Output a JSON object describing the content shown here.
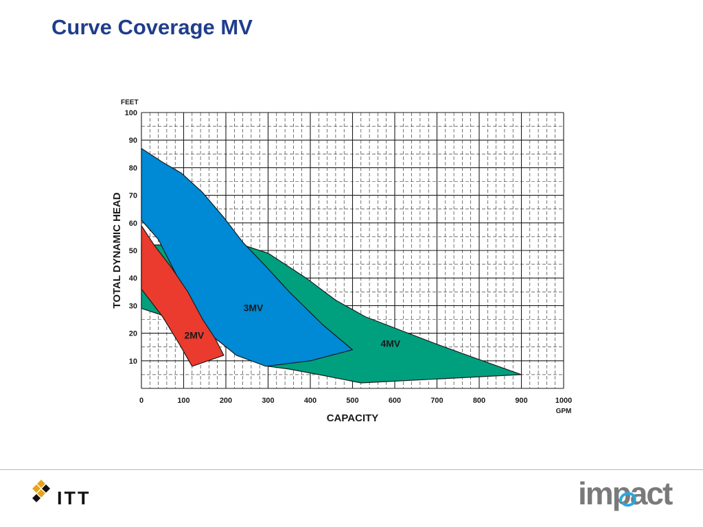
{
  "slide": {
    "title": "Curve Coverage MV"
  },
  "colors": {
    "title": "#1f3d8c",
    "grid": "#1a1a1a",
    "2MV": "#ea3b2e",
    "3MV": "#0089d4",
    "4MV": "#00a07f"
  },
  "chart_data": {
    "type": "area",
    "title": "",
    "xlabel": "CAPACITY",
    "ylabel": "TOTAL DYNAMIC HEAD",
    "x_unit": "GPM",
    "y_unit": "FEET",
    "xlim": [
      0,
      1000
    ],
    "ylim": [
      0,
      100
    ],
    "x_ticks": [
      0,
      100,
      200,
      300,
      400,
      500,
      600,
      700,
      800,
      900,
      1000
    ],
    "y_ticks": [
      10,
      20,
      30,
      40,
      50,
      60,
      70,
      80,
      90,
      100
    ],
    "grid": true,
    "series": [
      {
        "name": "4MV",
        "color": "#00a07f",
        "points": [
          [
            0,
            35
          ],
          [
            0,
            29
          ],
          [
            40,
            27
          ],
          [
            200,
            17
          ],
          [
            300,
            8
          ],
          [
            350,
            7
          ],
          [
            420,
            5
          ],
          [
            520,
            2
          ],
          [
            900,
            5
          ],
          [
            790,
            11
          ],
          [
            700,
            16
          ],
          [
            530,
            26
          ],
          [
            460,
            32
          ],
          [
            390,
            40
          ],
          [
            300,
            49
          ],
          [
            240,
            52
          ],
          [
            0,
            52
          ]
        ]
      },
      {
        "name": "3MV",
        "color": "#0089d4",
        "points": [
          [
            0,
            87
          ],
          [
            50,
            82
          ],
          [
            95,
            78
          ],
          [
            145,
            71
          ],
          [
            195,
            62
          ],
          [
            240,
            53
          ],
          [
            290,
            45
          ],
          [
            350,
            35
          ],
          [
            430,
            23
          ],
          [
            500,
            14
          ],
          [
            400,
            10
          ],
          [
            295,
            8
          ],
          [
            225,
            12
          ],
          [
            160,
            20
          ],
          [
            100,
            36
          ],
          [
            40,
            54
          ],
          [
            0,
            61
          ]
        ]
      },
      {
        "name": "2MV",
        "color": "#ea3b2e",
        "points": [
          [
            0,
            59
          ],
          [
            30,
            52
          ],
          [
            70,
            44
          ],
          [
            110,
            35
          ],
          [
            145,
            25
          ],
          [
            175,
            18
          ],
          [
            195,
            12
          ],
          [
            120,
            8
          ],
          [
            90,
            16
          ],
          [
            50,
            26
          ],
          [
            0,
            36
          ]
        ]
      }
    ],
    "annotations": [
      {
        "text": "2MV",
        "x": 125,
        "y": 18
      },
      {
        "text": "3MV",
        "x": 265,
        "y": 28
      },
      {
        "text": "4MV",
        "x": 590,
        "y": 15
      }
    ]
  },
  "footer": {
    "left_logo_text": "ITT",
    "right_logo_text": "impact"
  }
}
